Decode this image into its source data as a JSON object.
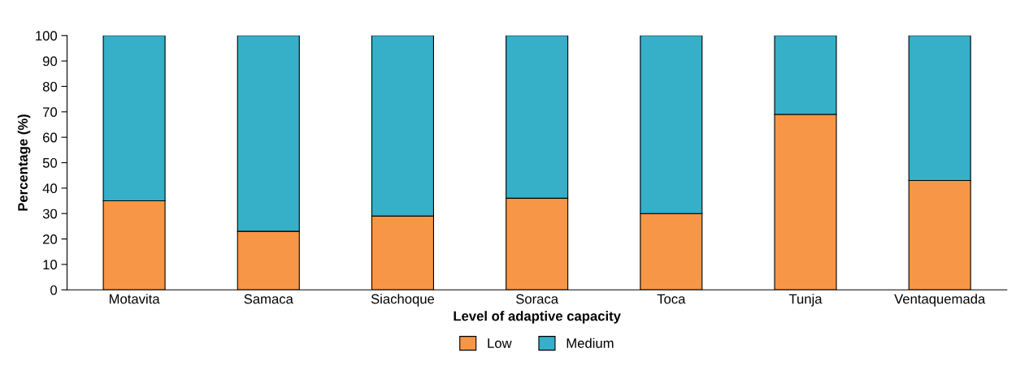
{
  "chart_data": {
    "type": "bar",
    "stacked": true,
    "xlabel": "Level of adaptive capacity",
    "ylabel": "Percentage (%)",
    "categories": [
      "Motavita",
      "Samaca",
      "Siachoque",
      "Soraca",
      "Toca",
      "Tunja",
      "Ventaquemada"
    ],
    "series": [
      {
        "name": "Low",
        "color": "#f79646",
        "values": [
          35,
          23,
          29,
          36,
          30,
          69,
          43
        ]
      },
      {
        "name": "Medium",
        "color": "#36afc8",
        "values": [
          65,
          77,
          71,
          64,
          70,
          31,
          57
        ]
      }
    ],
    "ylim": [
      0,
      100
    ],
    "yticks": [
      0,
      10,
      20,
      30,
      40,
      50,
      60,
      70,
      80,
      90,
      100
    ],
    "grid": false,
    "legend": "bottom"
  }
}
